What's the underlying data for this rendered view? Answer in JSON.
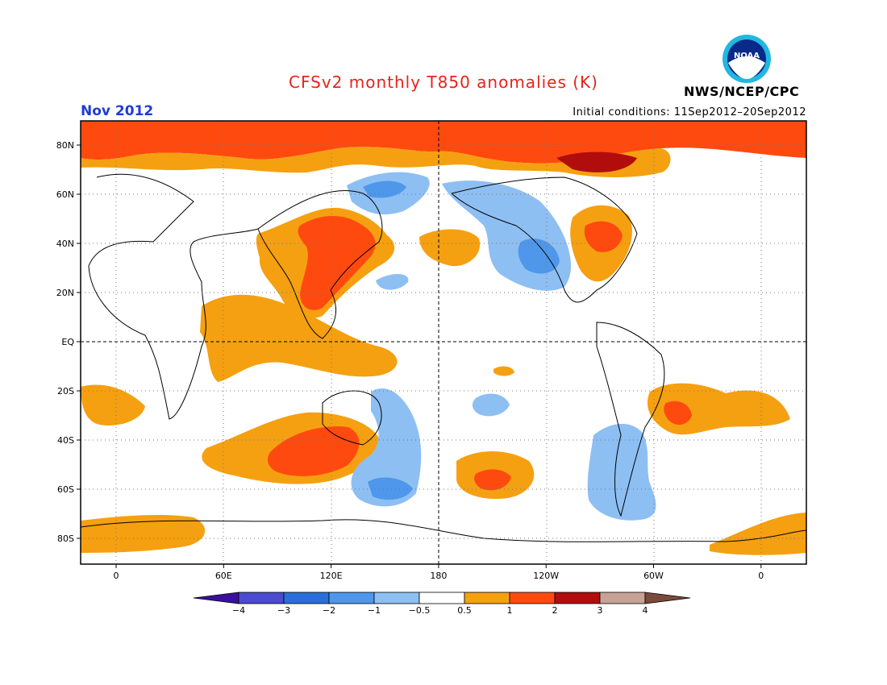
{
  "title": "CFSv2 monthly T850 anomalies (K)",
  "month": "Nov 2012",
  "initial_conditions": "Initial conditions: 11Sep2012–20Sep2012",
  "agency": "NWS/NCEP/CPC",
  "logo_text": "NOAA",
  "lat_labels": [
    "80N",
    "60N",
    "40N",
    "20N",
    "EQ",
    "20S",
    "40S",
    "60S",
    "80S"
  ],
  "lon_labels": [
    "0",
    "60E",
    "120E",
    "180",
    "120W",
    "60W",
    "0"
  ],
  "colorbar": {
    "labels": [
      "−4",
      "−3",
      "−2",
      "−1",
      "−0.5",
      "0.5",
      "1",
      "2",
      "3",
      "4"
    ],
    "colors": [
      "#3a0f9e",
      "#4a4bcf",
      "#2a6fd8",
      "#4e97ea",
      "#8ebff3",
      "#ffffff",
      "#f5a011",
      "#ff4a0f",
      "#b20d0d",
      "#c8a295",
      "#7a4a3a"
    ]
  },
  "anomaly_colors": {
    "warm_light": "#f5a011",
    "warm_mid": "#ff4a0f",
    "warm_dark": "#b20d0d",
    "cool_light": "#8ebff3",
    "cool_mid": "#4e97ea"
  }
}
